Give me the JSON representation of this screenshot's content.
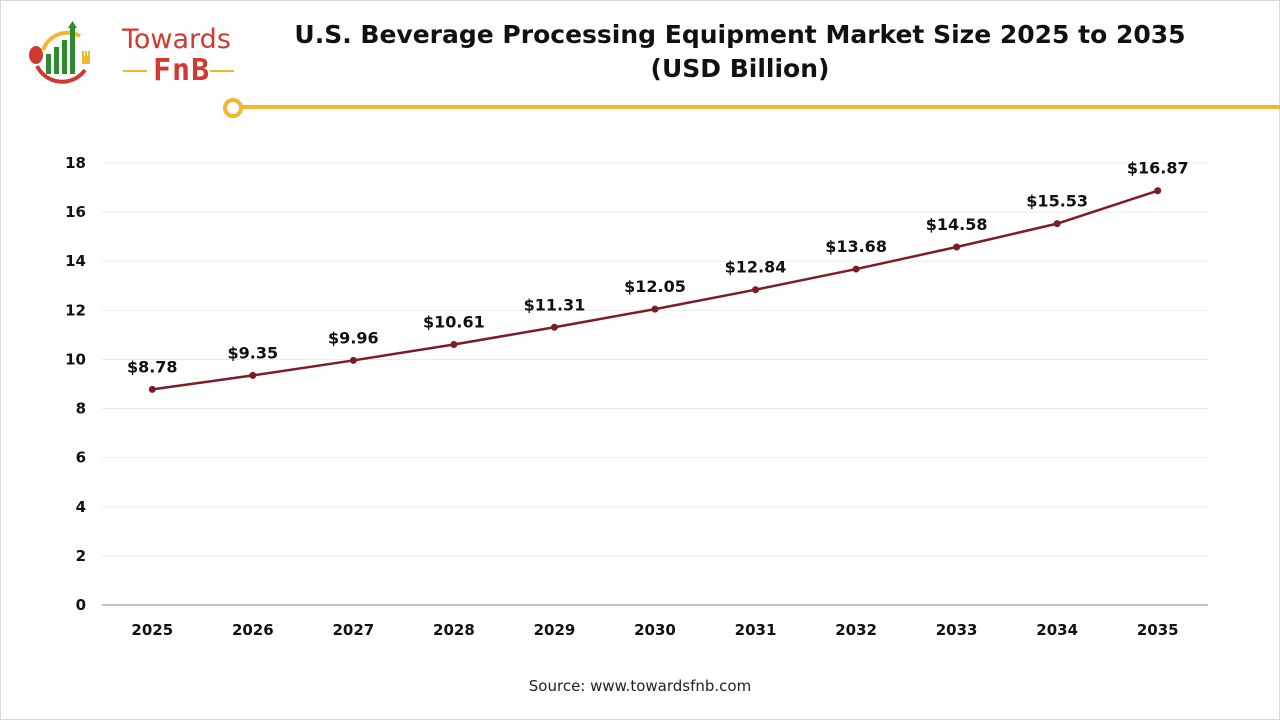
{
  "logo": {
    "line1": "Towards",
    "line2": "FnB"
  },
  "title_line1": "U.S. Beverage Processing Equipment Market Size 2025 to 2035",
  "title_line2": "(USD Billion)",
  "source": "Source: www.towardsfnb.com",
  "colors": {
    "line": "#7b1c26",
    "accent": "#f2b632",
    "brand_red": "#d03a33",
    "brand_green": "#2e8b2e"
  },
  "chart_data": {
    "type": "line",
    "categories": [
      "2025",
      "2026",
      "2027",
      "2028",
      "2029",
      "2030",
      "2031",
      "2032",
      "2033",
      "2034",
      "2035"
    ],
    "values": [
      8.78,
      9.35,
      9.96,
      10.61,
      11.31,
      12.05,
      12.84,
      13.68,
      14.58,
      15.53,
      16.87
    ],
    "data_labels": [
      "$8.78",
      "$9.35",
      "$9.96",
      "$10.61",
      "$11.31",
      "$12.05",
      "$12.84",
      "$13.68",
      "$14.58",
      "$15.53",
      "$16.87"
    ],
    "ylim": [
      0,
      18
    ],
    "yticks": [
      0,
      2,
      4,
      6,
      8,
      10,
      12,
      14,
      16,
      18
    ],
    "grid": true,
    "legend": "none"
  }
}
